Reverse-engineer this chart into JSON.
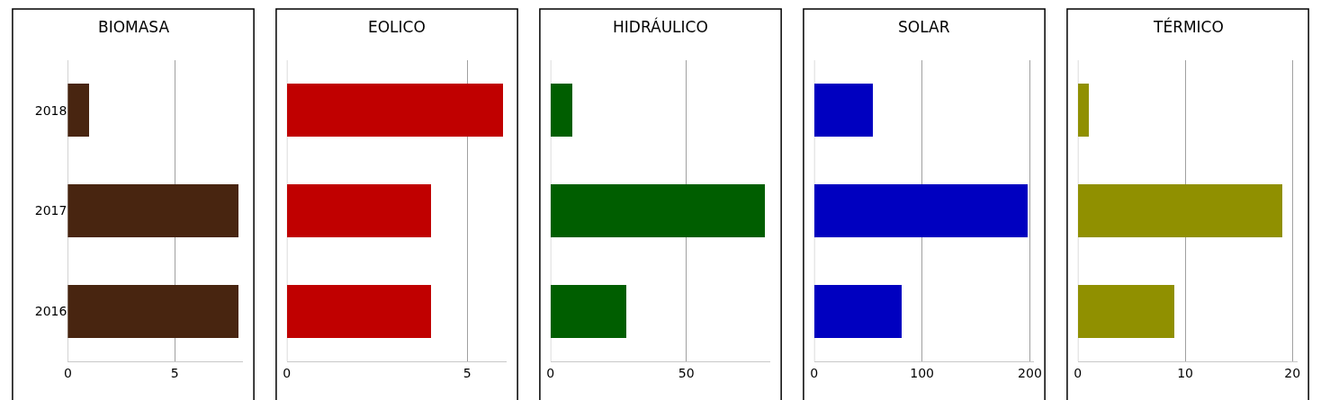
{
  "chart_data": [
    {
      "type": "bar",
      "orientation": "horizontal",
      "title": "BIOMASA",
      "categories": [
        "2018",
        "2017",
        "2016"
      ],
      "values": [
        1,
        8,
        8
      ],
      "color": "#482510",
      "xlim": [
        0,
        8.2
      ],
      "xticks": [
        0,
        5
      ],
      "grid": "x"
    },
    {
      "type": "bar",
      "orientation": "horizontal",
      "title": "EOLICO",
      "categories": [
        "2018",
        "2017",
        "2016"
      ],
      "values": [
        6,
        4,
        4
      ],
      "color": "#c00000",
      "xlim": [
        0,
        6.1
      ],
      "xticks": [
        0,
        5
      ],
      "grid": "x",
      "tick_labels": "x"
    },
    {
      "type": "bar",
      "orientation": "horizontal",
      "title": "HIDRÁULICO",
      "categories": [
        "2018",
        "2017",
        "2016"
      ],
      "values": [
        8,
        79,
        28
      ],
      "color": "#005e00",
      "xlim": [
        0,
        81
      ],
      "xticks": [
        0,
        50
      ],
      "grid": "x",
      "tick_labels": "x"
    },
    {
      "type": "bar",
      "orientation": "horizontal",
      "title": "SOLAR",
      "categories": [
        "2018",
        "2017",
        "2016"
      ],
      "values": [
        54,
        198,
        81
      ],
      "color": "#0000c0",
      "xlim": [
        0,
        204
      ],
      "xticks": [
        0,
        100,
        200
      ],
      "grid": "x",
      "tick_labels": "x"
    },
    {
      "type": "bar",
      "orientation": "horizontal",
      "title": "TÉRMICO",
      "categories": [
        "2018",
        "2017",
        "2016"
      ],
      "values": [
        1,
        19,
        9
      ],
      "color": "#909000",
      "xlim": [
        0,
        20.5
      ],
      "xticks": [
        0,
        10,
        20
      ],
      "grid": "x",
      "tick_labels": "x"
    }
  ]
}
